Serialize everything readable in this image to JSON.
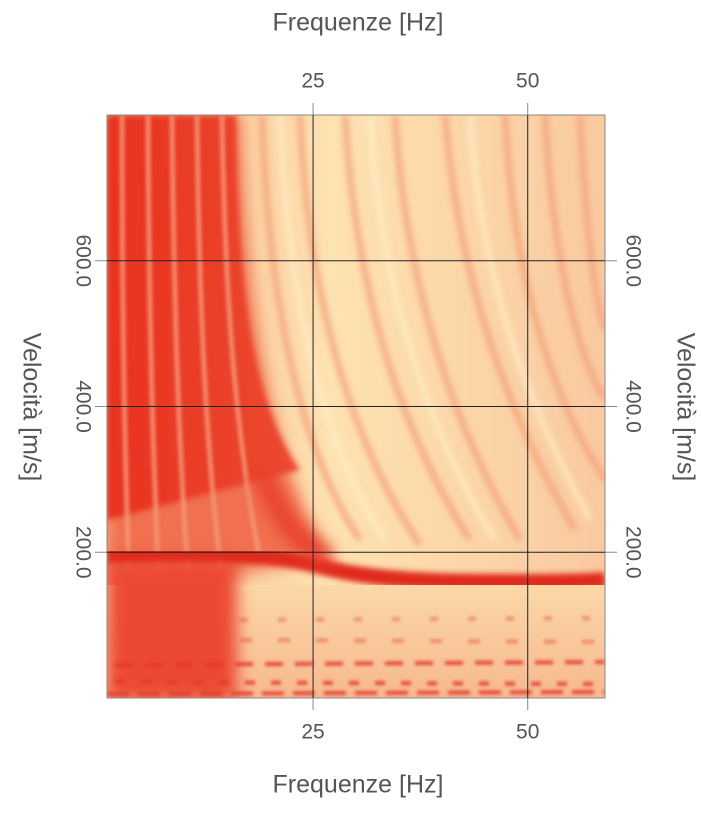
{
  "chart_data": {
    "type": "heatmap",
    "xlabel": "Frequenze [Hz]",
    "ylabel": "Velocità [m/s]",
    "xlim": [
      1,
      59
    ],
    "xticks": [
      25,
      50
    ],
    "ylim": [
      0,
      800
    ],
    "yticks": [
      {
        "value": 200,
        "label": "200.0"
      },
      {
        "value": 400,
        "label": "400.0"
      },
      {
        "value": 600,
        "label": "600.0"
      }
    ],
    "grid": true
  }
}
